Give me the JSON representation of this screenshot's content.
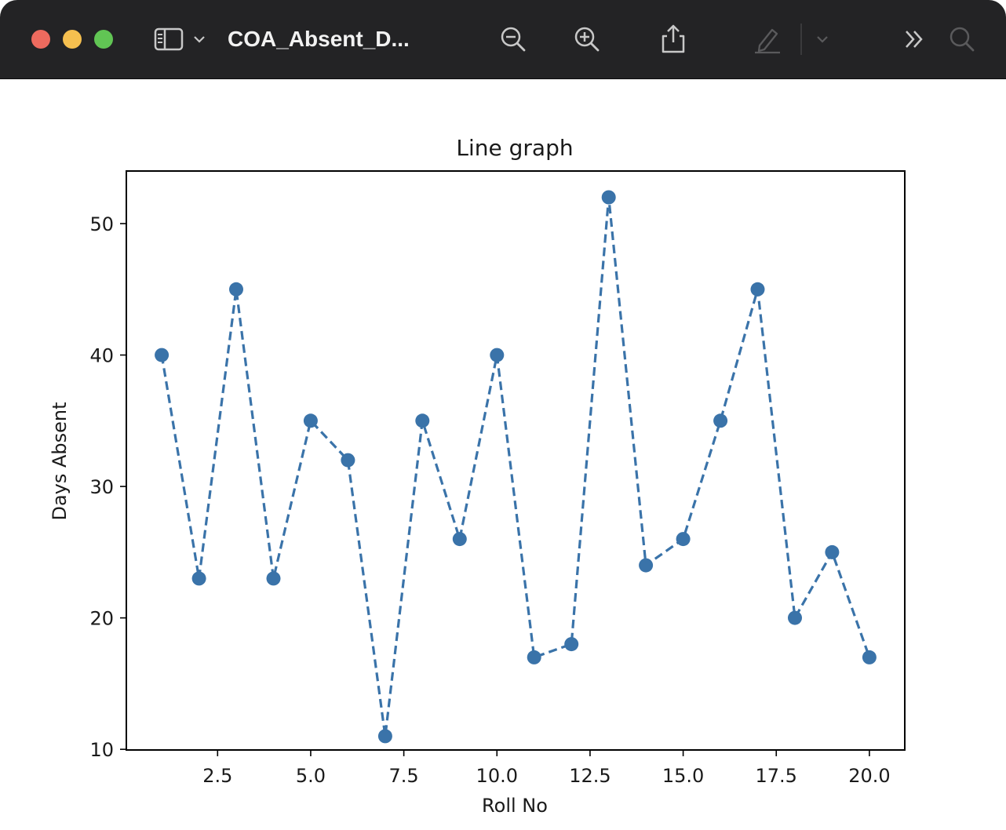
{
  "window": {
    "title": "COA_Absent_D...",
    "titlebar_color": "#232325"
  },
  "toolbar": {
    "icons": [
      "sidebar-icon",
      "chevron-down-icon",
      "zoom-out-icon",
      "zoom-in-icon",
      "share-icon",
      "markup-pen-icon",
      "chevron-down-icon",
      "more-chevrons-icon",
      "search-icon"
    ]
  },
  "chart_data": {
    "type": "line",
    "title": "Line graph",
    "xlabel": "Roll No",
    "ylabel": "Days Absent",
    "line_style": "dashed",
    "marker": "circle",
    "color": "#3a73a9",
    "x": [
      1,
      2,
      3,
      4,
      5,
      6,
      7,
      8,
      9,
      10,
      11,
      12,
      13,
      14,
      15,
      16,
      17,
      18,
      19,
      20
    ],
    "series": [
      {
        "values": [
          40,
          23,
          45,
          23,
          35,
          32,
          11,
          35,
          26,
          40,
          17,
          18,
          52,
          24,
          26,
          35,
          45,
          20,
          25,
          17
        ]
      }
    ],
    "xlim": [
      0.05,
      20.95
    ],
    "ylim": [
      9.95,
      54
    ],
    "xticks": [
      2.5,
      5.0,
      7.5,
      10.0,
      12.5,
      15.0,
      17.5,
      20.0
    ],
    "xtick_labels": [
      "2.5",
      "5.0",
      "7.5",
      "10.0",
      "12.5",
      "15.0",
      "17.5",
      "20.0"
    ],
    "yticks": [
      10,
      20,
      30,
      40,
      50
    ],
    "ytick_labels": [
      "10",
      "20",
      "30",
      "40",
      "50"
    ],
    "grid": false
  }
}
